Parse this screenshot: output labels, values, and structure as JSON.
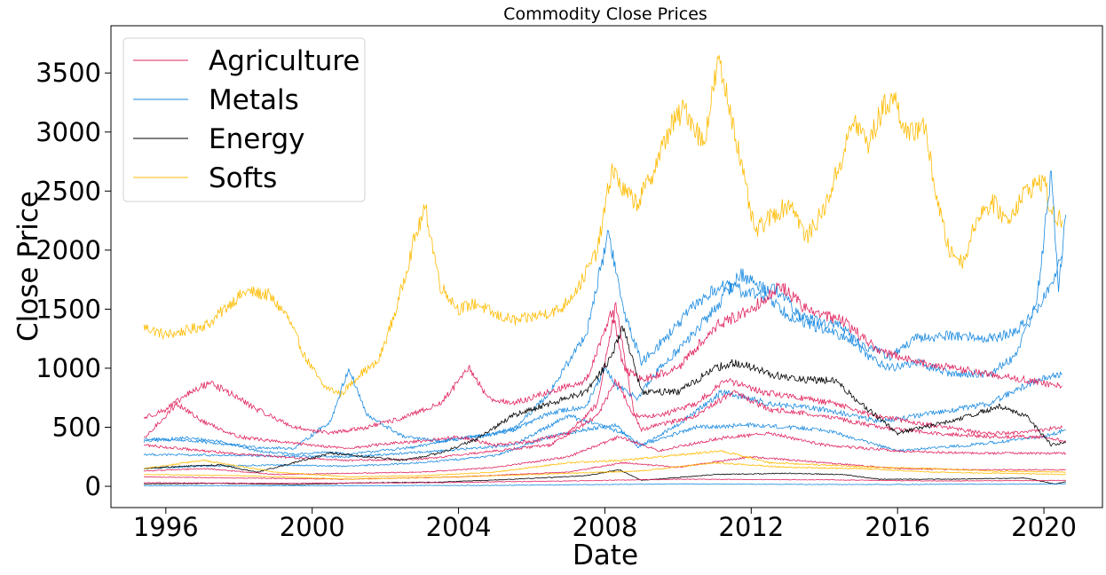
{
  "chart_data": {
    "type": "line",
    "title": "Commodity Close Prices",
    "xlabel": "Date",
    "ylabel": "Close Price",
    "xlim": [
      1994.5,
      2021.6
    ],
    "ylim": [
      -180,
      3900
    ],
    "x_ticks": [
      1996,
      2000,
      2004,
      2008,
      2012,
      2016,
      2020
    ],
    "x_tick_labels": [
      "1996",
      "2000",
      "2004",
      "2008",
      "2012",
      "2016",
      "2020"
    ],
    "y_ticks": [
      0,
      500,
      1000,
      1500,
      2000,
      2500,
      3000,
      3500
    ],
    "y_tick_labels": [
      "0",
      "500",
      "1000",
      "1500",
      "2000",
      "2500",
      "3000",
      "3500"
    ],
    "legend_position": "top-left",
    "legend": [
      {
        "name": "Agriculture",
        "color": "#e0245e"
      },
      {
        "name": "Metals",
        "color": "#1a8ae0"
      },
      {
        "name": "Energy",
        "color": "#000000"
      },
      {
        "name": "Softs",
        "color": "#ffbb00"
      }
    ],
    "series": [
      {
        "group": "Softs",
        "color": "#ffbb00",
        "x": [
          1995.4,
          1996.0,
          1996.6,
          1997.2,
          1997.8,
          1998.2,
          1998.8,
          1999.3,
          1999.8,
          2000.3,
          2000.8,
          2001.3,
          2001.8,
          2002.3,
          2002.8,
          2003.1,
          2003.5,
          2004.0,
          2004.5,
          2005.0,
          2005.6,
          2006.2,
          2006.8,
          2007.3,
          2007.8,
          2008.2,
          2008.5,
          2008.9,
          2009.3,
          2009.8,
          2010.2,
          2010.7,
          2011.1,
          2011.5,
          2011.8,
          2012.1,
          2012.6,
          2013.1,
          2013.5,
          2014.0,
          2014.5,
          2014.8,
          2015.2,
          2015.6,
          2015.9,
          2016.3,
          2016.7,
          2017.1,
          2017.4,
          2017.8,
          2018.2,
          2018.6,
          2019.0,
          2019.5,
          2020.0,
          2020.2,
          2020.5
        ],
        "y": [
          1350,
          1280,
          1320,
          1380,
          1560,
          1650,
          1620,
          1450,
          1100,
          850,
          780,
          950,
          1050,
          1500,
          2100,
          2350,
          1700,
          1500,
          1550,
          1450,
          1400,
          1450,
          1500,
          1700,
          2000,
          2700,
          2500,
          2400,
          2650,
          3050,
          3200,
          2900,
          3600,
          3100,
          2600,
          2150,
          2300,
          2400,
          2100,
          2350,
          2800,
          3100,
          2900,
          3200,
          3300,
          2950,
          3100,
          2400,
          2000,
          1900,
          2300,
          2400,
          2250,
          2500,
          2600,
          2300,
          2250
        ]
      },
      {
        "group": "Metals",
        "color": "#1a8ae0",
        "x": [
          1995.4,
          1996.5,
          1997.5,
          1998.5,
          1999.5,
          2000.5,
          2001.0,
          2001.8,
          2002.8,
          2003.8,
          2004.8,
          2005.8,
          2006.5,
          2007.5,
          2008.0,
          2008.3,
          2008.9,
          2009.5,
          2010.3,
          2011.0,
          2011.7,
          2012.2,
          2012.8,
          2013.4,
          2014.2,
          2015.0,
          2015.8,
          2016.5,
          2017.5,
          2018.5,
          2019.2,
          2019.8,
          2020.2,
          2020.5
        ],
        "y": [
          380,
          410,
          380,
          300,
          270,
          290,
          270,
          300,
          330,
          400,
          430,
          520,
          620,
          680,
          1000,
          850,
          750,
          1000,
          1250,
          1500,
          1800,
          1700,
          1650,
          1400,
          1300,
          1200,
          1100,
          1250,
          1280,
          1250,
          1300,
          1500,
          1700,
          1950
        ]
      },
      {
        "group": "Metals",
        "color": "#1a8ae0",
        "x": [
          1995.4,
          1996.5,
          1997.5,
          1998.5,
          1999.5,
          2000.5,
          2001.0,
          2001.5,
          2002.5,
          2003.5,
          2004.5,
          2005.5,
          2006.5,
          2007.5,
          2008.1,
          2008.5,
          2009.0,
          2009.8,
          2010.5,
          2011.2,
          2011.8,
          2012.5,
          2013.0,
          2013.8,
          2014.5,
          2015.2,
          2015.8,
          2016.5,
          2017.5,
          2018.5,
          2019.2,
          2019.8,
          2020.2,
          2020.4,
          2020.6
        ],
        "y": [
          400,
          390,
          360,
          330,
          320,
          550,
          1000,
          600,
          420,
          380,
          420,
          470,
          800,
          1300,
          2150,
          1500,
          1050,
          1300,
          1550,
          1700,
          1650,
          1600,
          1450,
          1400,
          1350,
          1100,
          1000,
          1050,
          950,
          950,
          1100,
          1550,
          2650,
          1700,
          2300
        ]
      },
      {
        "group": "Metals",
        "color": "#1a8ae0",
        "x": [
          1995.4,
          1997.0,
          1999.0,
          2001.0,
          2003.0,
          2005.0,
          2006.5,
          2007.8,
          2008.3,
          2008.9,
          2010.0,
          2011.2,
          2012.5,
          2014.0,
          2015.5,
          2017.0,
          2018.5,
          2019.8,
          2020.5
        ],
        "y": [
          150,
          170,
          180,
          170,
          200,
          260,
          420,
          500,
          520,
          330,
          520,
          800,
          700,
          650,
          550,
          620,
          700,
          900,
          950
        ]
      },
      {
        "group": "Metals",
        "color": "#1a8ae0",
        "x": [
          1995.4,
          1998.0,
          2001.0,
          2003.5,
          2005.5,
          2007.0,
          2008.5,
          2009.0,
          2010.5,
          2012.0,
          2014.0,
          2016.0,
          2018.0,
          2020.0,
          2020.6
        ],
        "y": [
          270,
          260,
          250,
          300,
          350,
          600,
          450,
          350,
          500,
          520,
          480,
          300,
          350,
          420,
          480
        ]
      },
      {
        "group": "Agriculture",
        "color": "#e0245e",
        "x": [
          1995.4,
          1996.0,
          1996.6,
          1997.2,
          1997.8,
          1998.5,
          1999.5,
          2000.5,
          2001.5,
          2002.5,
          2003.5,
          2004.3,
          2004.8,
          2005.5,
          2006.5,
          2007.5,
          2008.2,
          2008.5,
          2009.0,
          2010.0,
          2011.0,
          2012.0,
          2012.8,
          2013.5,
          2014.5,
          2015.5,
          2016.5,
          2017.5,
          2018.5,
          2019.5,
          2020.5
        ],
        "y": [
          580,
          650,
          780,
          880,
          780,
          650,
          500,
          450,
          500,
          580,
          700,
          1000,
          750,
          700,
          800,
          900,
          1500,
          1000,
          900,
          1000,
          1350,
          1500,
          1700,
          1500,
          1400,
          1150,
          1050,
          1000,
          950,
          900,
          850
        ]
      },
      {
        "group": "Agriculture",
        "color": "#e0245e",
        "x": [
          1995.4,
          1996.3,
          1997.0,
          1998.0,
          1999.0,
          2000.0,
          2001.0,
          2002.0,
          2003.0,
          2004.0,
          2005.0,
          2006.0,
          2007.0,
          2007.8,
          2008.3,
          2008.8,
          2009.5,
          2010.5,
          2011.3,
          2012.3,
          2013.3,
          2014.3,
          2015.3,
          2016.3,
          2017.3,
          2018.3,
          2019.3,
          2020.5
        ],
        "y": [
          400,
          700,
          550,
          420,
          380,
          350,
          320,
          360,
          380,
          420,
          350,
          380,
          450,
          700,
          1550,
          600,
          600,
          700,
          900,
          800,
          750,
          700,
          600,
          550,
          500,
          450,
          450,
          500
        ]
      },
      {
        "group": "Agriculture",
        "color": "#e0245e",
        "x": [
          1995.4,
          1997.0,
          1999.0,
          2001.0,
          2003.0,
          2005.0,
          2006.5,
          2007.8,
          2008.3,
          2009.0,
          2010.5,
          2011.5,
          2012.5,
          2014.0,
          2015.5,
          2017.0,
          2018.5,
          2020.0,
          2020.6
        ],
        "y": [
          350,
          300,
          250,
          220,
          230,
          300,
          350,
          600,
          900,
          480,
          600,
          800,
          650,
          600,
          500,
          450,
          420,
          420,
          380
        ]
      },
      {
        "group": "Agriculture",
        "color": "#e0245e",
        "x": [
          1995.4,
          1997.0,
          1999.0,
          2001.0,
          2003.0,
          2005.0,
          2007.0,
          2008.4,
          2009.5,
          2011.0,
          2012.5,
          2014.0,
          2016.0,
          2018.0,
          2020.6
        ],
        "y": [
          130,
          150,
          100,
          110,
          120,
          160,
          250,
          420,
          300,
          400,
          450,
          350,
          300,
          280,
          280
        ]
      },
      {
        "group": "Agriculture",
        "color": "#e0245e",
        "x": [
          1995.4,
          1998.0,
          2001.0,
          2004.0,
          2007.0,
          2008.5,
          2010.0,
          2012.0,
          2014.0,
          2016.0,
          2018.0,
          2020.6
        ],
        "y": [
          80,
          70,
          60,
          80,
          120,
          200,
          160,
          250,
          200,
          150,
          140,
          140
        ]
      },
      {
        "group": "Energy",
        "color": "#000000",
        "x": [
          1995.4,
          1996.5,
          1997.5,
          1998.5,
          1999.5,
          2000.5,
          2001.5,
          2002.5,
          2003.5,
          2004.5,
          2005.5,
          2006.5,
          2007.5,
          2008.1,
          2008.5,
          2009.0,
          2010.0,
          2011.0,
          2011.6,
          2012.5,
          2013.5,
          2014.3,
          2015.0,
          2016.0,
          2017.0,
          2018.0,
          2018.8,
          2019.5,
          2020.2,
          2020.6
        ],
        "y": [
          150,
          170,
          180,
          120,
          200,
          280,
          250,
          220,
          280,
          400,
          600,
          700,
          800,
          1050,
          1350,
          800,
          800,
          1000,
          1050,
          950,
          900,
          900,
          700,
          450,
          520,
          600,
          680,
          600,
          350,
          370
        ]
      },
      {
        "group": "Energy",
        "color": "#000000",
        "x": [
          1995.4,
          1997.5,
          1999.5,
          2001.5,
          2003.5,
          2005.5,
          2007.5,
          2008.4,
          2009.0,
          2011.0,
          2013.0,
          2014.5,
          2015.5,
          2017.5,
          2019.5,
          2020.3,
          2020.6
        ],
        "y": [
          20,
          25,
          15,
          30,
          35,
          60,
          90,
          140,
          50,
          100,
          110,
          100,
          60,
          60,
          70,
          20,
          40
        ]
      },
      {
        "group": "Softs",
        "color": "#ffbb00",
        "x": [
          1995.4,
          1997.0,
          1999.0,
          2001.0,
          2003.0,
          2005.0,
          2007.0,
          2008.5,
          2010.5,
          2011.2,
          2012.5,
          2014.0,
          2015.5,
          2017.0,
          2018.5,
          2020.6
        ],
        "y": [
          150,
          220,
          120,
          80,
          90,
          120,
          200,
          220,
          280,
          300,
          200,
          180,
          160,
          150,
          130,
          120
        ]
      },
      {
        "group": "Softs",
        "color": "#ffbb00",
        "x": [
          1995.4,
          1998.0,
          2001.0,
          2004.0,
          2007.0,
          2009.0,
          2011.0,
          2013.0,
          2015.0,
          2017.0,
          2019.0,
          2020.6
        ],
        "y": [
          100,
          90,
          60,
          80,
          110,
          130,
          200,
          160,
          150,
          120,
          110,
          100
        ]
      },
      {
        "group": "Agriculture",
        "color": "#e0245e",
        "x": [
          1995.4,
          1999.0,
          2003.0,
          2007.0,
          2010.0,
          2014.0,
          2017.0,
          2020.6
        ],
        "y": [
          30,
          25,
          30,
          45,
          60,
          55,
          45,
          50
        ]
      },
      {
        "group": "Metals",
        "color": "#1a8ae0",
        "x": [
          1995.4,
          2000.0,
          2005.0,
          2010.0,
          2015.0,
          2020.6
        ],
        "y": [
          5,
          5,
          8,
          20,
          15,
          20
        ]
      }
    ]
  }
}
